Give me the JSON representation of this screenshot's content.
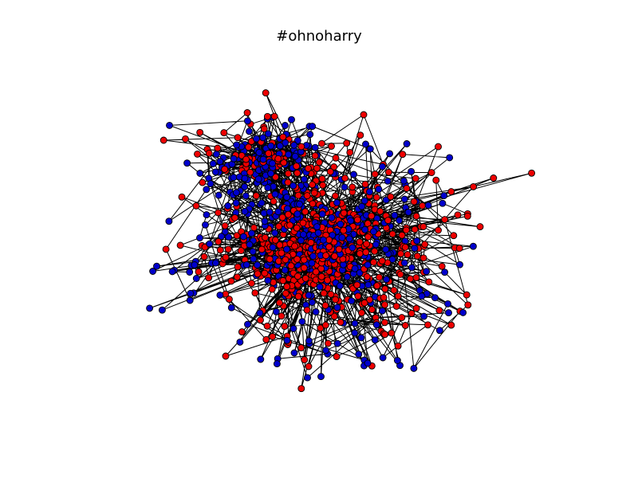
{
  "figure": {
    "title": "#ohnoharry"
  },
  "graph": {
    "node_groups": [
      {
        "color": "#0000cc"
      },
      {
        "color": "#ee0000"
      }
    ],
    "edge_color": "#000000",
    "node_outline": "#000000"
  }
}
